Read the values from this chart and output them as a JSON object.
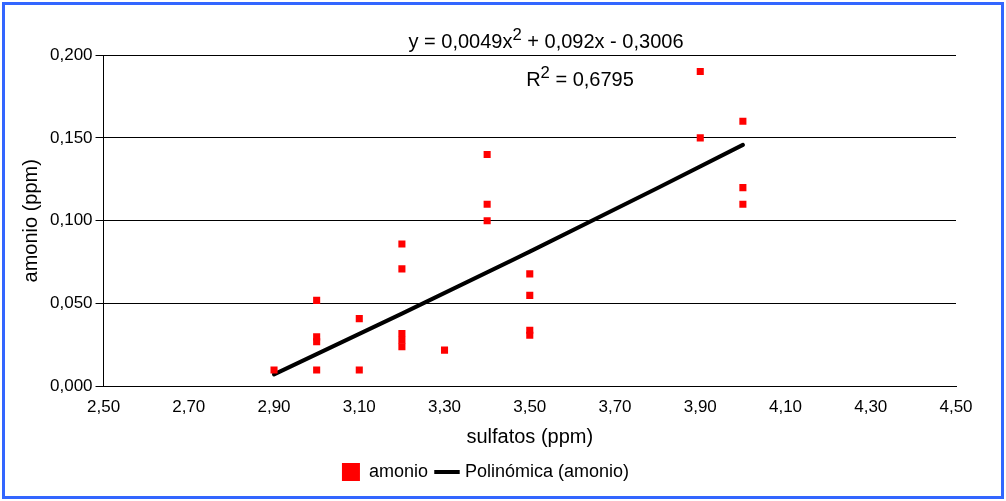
{
  "chart_data": {
    "type": "scatter",
    "xlabel": "sulfatos (ppm)",
    "ylabel": "amonio (ppm)",
    "annotations": [
      "y = 0,0049x$^{2}$ + 0,092x - 0,3006",
      "R$^{2}$ = 0,6795"
    ],
    "series": [
      {
        "name": "amonio",
        "color": "#ff0000",
        "marker": "square",
        "x": [
          2.9,
          3.0,
          3.0,
          3.0,
          3.0,
          3.1,
          3.1,
          3.2,
          3.2,
          3.2,
          3.2,
          3.2,
          3.3,
          3.4,
          3.4,
          3.4,
          3.5,
          3.5,
          3.5,
          3.5,
          3.9,
          3.9,
          4.0,
          4.0,
          4.0
        ],
        "values": [
          0.01,
          0.052,
          0.03,
          0.027,
          0.01,
          0.041,
          0.01,
          0.086,
          0.071,
          0.032,
          0.028,
          0.024,
          0.022,
          0.14,
          0.11,
          0.1,
          0.068,
          0.055,
          0.034,
          0.031,
          0.19,
          0.15,
          0.16,
          0.12,
          0.11
        ]
      },
      {
        "name": "Polinómica (amonio)",
        "type": "line",
        "color": "#000000",
        "marker": "none",
        "x": [
          2.9,
          3.2,
          3.5,
          3.8,
          4.0
        ],
        "values": [
          0.0074,
          0.044,
          0.0814,
          0.1198,
          0.1458
        ]
      }
    ],
    "xlim": [
      2.5,
      4.5
    ],
    "xticks": [
      {
        "value": 2.5,
        "label": "2,50"
      },
      {
        "value": 2.7,
        "label": "2,70"
      },
      {
        "value": 2.9,
        "label": "2,90"
      },
      {
        "value": 3.1,
        "label": "3,10"
      },
      {
        "value": 3.3,
        "label": "3,30"
      },
      {
        "value": 3.5,
        "label": "3,50"
      },
      {
        "value": 3.7,
        "label": "3,70"
      },
      {
        "value": 3.9,
        "label": "3,90"
      },
      {
        "value": 4.1,
        "label": "4,10"
      },
      {
        "value": 4.3,
        "label": "4,30"
      },
      {
        "value": 4.5,
        "label": "4,50"
      }
    ],
    "ylim": [
      0,
      0.2
    ],
    "yticks": [
      {
        "value": 0,
        "label": "0,000"
      },
      {
        "value": 0.05,
        "label": "0,050"
      },
      {
        "value": 0.1,
        "label": "0,100"
      },
      {
        "value": 0.15,
        "label": "0,150"
      },
      {
        "value": 0.2,
        "label": "0,200"
      }
    ],
    "grid": "y",
    "legend": "bottom"
  }
}
